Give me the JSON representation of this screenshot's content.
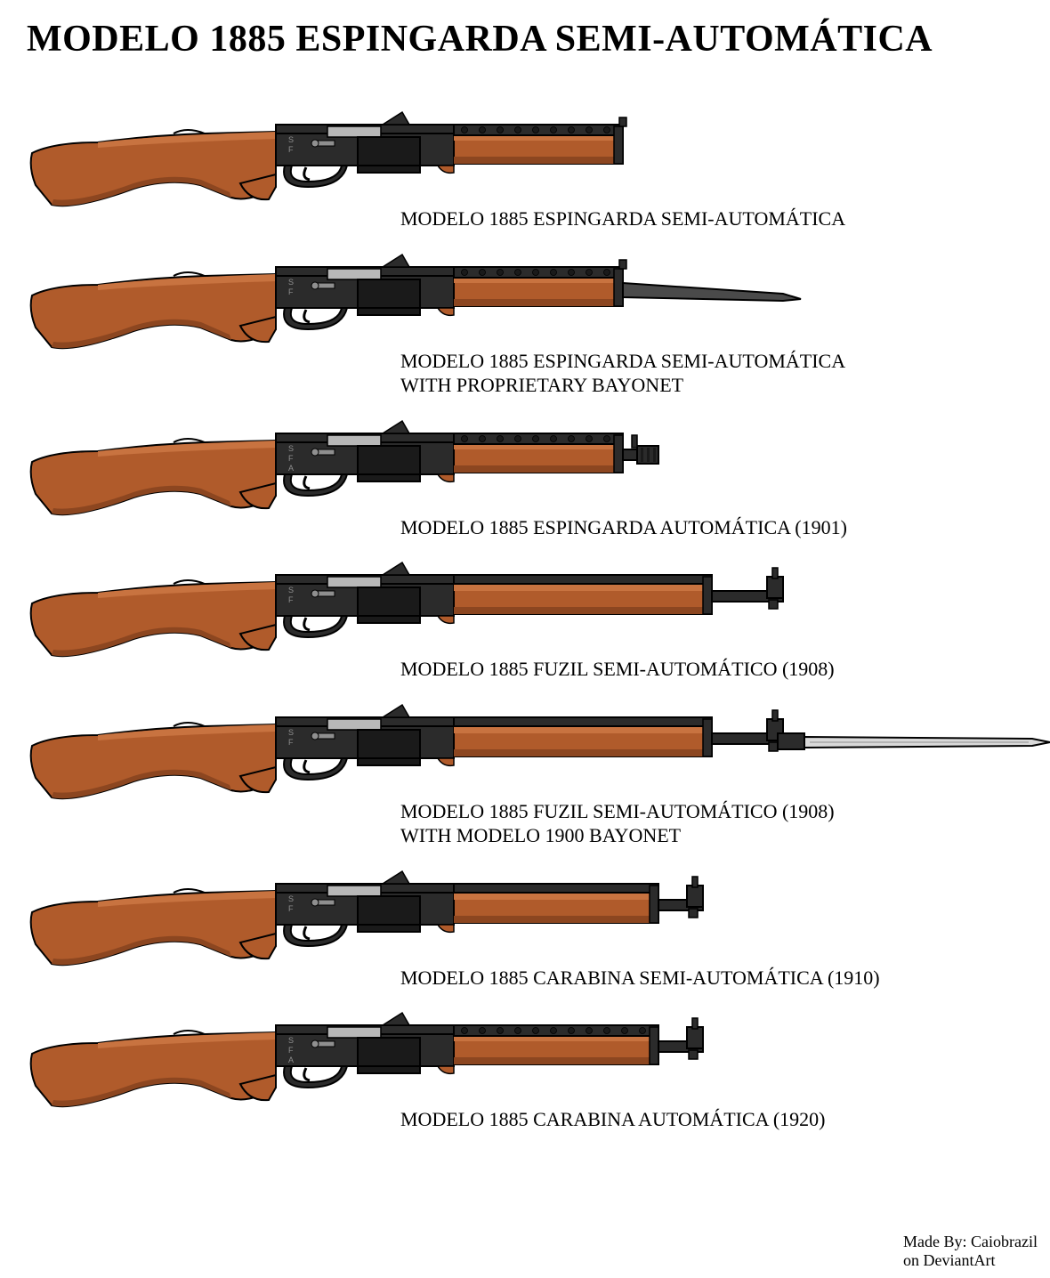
{
  "title": "MODELO 1885 ESPINGARDA SEMI-AUTOMÁTICA",
  "credit_line1": "Made By: Caiobrazil",
  "credit_line2": "on DeviantArt",
  "colors": {
    "wood_main": "#b05b2b",
    "wood_dark": "#8c4620",
    "wood_light": "#c87340",
    "metal_black": "#2b2b2b",
    "metal_dark": "#1a1a1a",
    "metal_gray": "#8f8f8f",
    "metal_light": "#b8b8b8",
    "outline": "#000000",
    "bayonet_silver": "#d9d9d9",
    "bayonet_dark": "#4a4a4a",
    "background": "#ffffff"
  },
  "geometry": {
    "stock_width": 280,
    "receiver_width": 200,
    "short_handguard": 190,
    "long_handguard": 290,
    "carbine_handguard": 230,
    "gun_height": 130
  },
  "variants": [
    {
      "id": "v1",
      "label_lines": [
        "MODELO 1885 ESPINGARDA SEMI-AUTOMÁTICA"
      ],
      "barrel_type": "espingarda",
      "handguard_len": 190,
      "barrel_extra": 0,
      "bayonet": "none",
      "muzzle": "none",
      "selector": "SF",
      "top_rib": true
    },
    {
      "id": "v2",
      "label_lines": [
        "MODELO 1885 ESPINGARDA SEMI-AUTOMÁTICA",
        "WITH PROPRIETARY BAYONET"
      ],
      "barrel_type": "espingarda",
      "handguard_len": 190,
      "barrel_extra": 0,
      "bayonet": "proprietary",
      "muzzle": "none",
      "selector": "SF",
      "top_rib": true
    },
    {
      "id": "v3",
      "label_lines": [
        "MODELO 1885 ESPINGARDA AUTOMÁTICA (1901)"
      ],
      "barrel_type": "espingarda",
      "handguard_len": 190,
      "barrel_extra": 40,
      "bayonet": "none",
      "muzzle": "comp",
      "selector": "SFA",
      "top_rib": true
    },
    {
      "id": "v4",
      "label_lines": [
        "MODELO 1885 FUZIL SEMI-AUTOMÁTICO (1908)"
      ],
      "barrel_type": "rifle",
      "handguard_len": 290,
      "barrel_extra": 80,
      "bayonet": "none",
      "muzzle": "sight",
      "selector": "SF",
      "top_rib": false
    },
    {
      "id": "v5",
      "label_lines": [
        "MODELO 1885 FUZIL SEMI-AUTOMÁTICO (1908)",
        "WITH MODELO 1900 BAYONET"
      ],
      "barrel_type": "rifle",
      "handguard_len": 290,
      "barrel_extra": 80,
      "bayonet": "m1900",
      "muzzle": "sight",
      "selector": "SF",
      "top_rib": false
    },
    {
      "id": "v6",
      "label_lines": [
        "MODELO 1885 CARABINA SEMI-AUTOMÁTICA (1910)"
      ],
      "barrel_type": "carbine",
      "handguard_len": 230,
      "barrel_extra": 50,
      "bayonet": "none",
      "muzzle": "sight",
      "selector": "SF",
      "top_rib": false
    },
    {
      "id": "v7",
      "label_lines": [
        "MODELO 1885 CARABINA AUTOMÁTICA (1920)"
      ],
      "barrel_type": "carbine",
      "handguard_len": 230,
      "barrel_extra": 50,
      "bayonet": "none",
      "muzzle": "sight",
      "selector": "SFA",
      "top_rib": true
    }
  ]
}
